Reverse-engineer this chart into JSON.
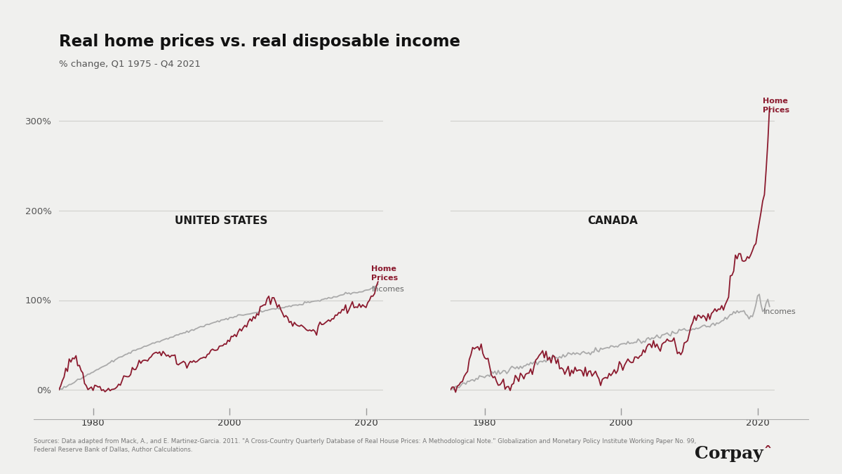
{
  "title": "Real home prices vs. real disposable income",
  "subtitle": "% change, Q1 1975 - Q4 2021",
  "background_color": "#f0f0ee",
  "plot_bg_color": "#f0f0ee",
  "home_prices_color": "#8B1A2E",
  "incomes_color": "#aaaaaa",
  "us_label": "UNITED STATES",
  "canada_label": "CANADA",
  "ylabel_ticks": [
    "0%",
    "100%",
    "200%",
    "300%"
  ],
  "ytick_values": [
    0,
    100,
    200,
    300
  ],
  "ylim": [
    -20,
    340
  ],
  "xticks": [
    1980,
    2000,
    2020
  ],
  "source_text": "Sources: Data adapted from Mack, A., and E. Martinez-Garcia. 2011. \"A Cross-Country Quarterly Database of Real House Prices: A Methodological Note.\" Globalization and Monetary Policy Institute Working Paper No. 99,\nFederal Reserve Bank of Dallas, Author Calculations.",
  "us_hp_keypoints": [
    [
      1975.0,
      0
    ],
    [
      1976.5,
      30
    ],
    [
      1978.0,
      28
    ],
    [
      1979.0,
      5
    ],
    [
      1980.0,
      2
    ],
    [
      1982.0,
      0
    ],
    [
      1985.0,
      15
    ],
    [
      1988.0,
      35
    ],
    [
      1990.0,
      40
    ],
    [
      1993.0,
      30
    ],
    [
      1996.0,
      35
    ],
    [
      1999.0,
      50
    ],
    [
      2000.0,
      55
    ],
    [
      2002.0,
      70
    ],
    [
      2004.0,
      85
    ],
    [
      2006.0,
      100
    ],
    [
      2007.5,
      90
    ],
    [
      2009.0,
      75
    ],
    [
      2010.0,
      72
    ],
    [
      2012.0,
      65
    ],
    [
      2014.0,
      75
    ],
    [
      2016.0,
      85
    ],
    [
      2018.0,
      92
    ],
    [
      2020.0,
      95
    ],
    [
      2021.75,
      120
    ]
  ],
  "us_inc_keypoints": [
    [
      1975.0,
      0
    ],
    [
      1980.0,
      20
    ],
    [
      1985.0,
      40
    ],
    [
      1990.0,
      55
    ],
    [
      1995.0,
      68
    ],
    [
      2000.0,
      80
    ],
    [
      2005.0,
      88
    ],
    [
      2010.0,
      95
    ],
    [
      2015.0,
      103
    ],
    [
      2018.0,
      108
    ],
    [
      2020.5,
      112
    ],
    [
      2021.75,
      118
    ]
  ],
  "ca_hp_keypoints": [
    [
      1975.0,
      0
    ],
    [
      1976.0,
      5
    ],
    [
      1977.0,
      15
    ],
    [
      1979.0,
      50
    ],
    [
      1981.0,
      20
    ],
    [
      1983.0,
      5
    ],
    [
      1985.0,
      15
    ],
    [
      1987.0,
      25
    ],
    [
      1989.0,
      40
    ],
    [
      1990.5,
      30
    ],
    [
      1992.0,
      20
    ],
    [
      1995.0,
      20
    ],
    [
      1997.0,
      15
    ],
    [
      1999.0,
      20
    ],
    [
      2001.0,
      30
    ],
    [
      2003.0,
      40
    ],
    [
      2004.5,
      50
    ],
    [
      2006.0,
      50
    ],
    [
      2007.5,
      55
    ],
    [
      2008.5,
      40
    ],
    [
      2009.5,
      55
    ],
    [
      2011.0,
      80
    ],
    [
      2012.5,
      80
    ],
    [
      2014.0,
      90
    ],
    [
      2015.5,
      100
    ],
    [
      2017.0,
      150
    ],
    [
      2018.0,
      145
    ],
    [
      2019.0,
      155
    ],
    [
      2020.0,
      170
    ],
    [
      2020.5,
      200
    ],
    [
      2021.0,
      225
    ],
    [
      2021.5,
      280
    ],
    [
      2021.75,
      315
    ]
  ],
  "ca_inc_keypoints": [
    [
      1975.0,
      0
    ],
    [
      1980.0,
      15
    ],
    [
      1985.0,
      25
    ],
    [
      1990.0,
      35
    ],
    [
      1995.0,
      42
    ],
    [
      2000.0,
      50
    ],
    [
      2005.0,
      58
    ],
    [
      2010.0,
      68
    ],
    [
      2015.0,
      78
    ],
    [
      2018.0,
      85
    ],
    [
      2019.5,
      88
    ],
    [
      2020.25,
      105
    ],
    [
      2020.75,
      88
    ],
    [
      2021.0,
      90
    ],
    [
      2021.75,
      95
    ]
  ]
}
